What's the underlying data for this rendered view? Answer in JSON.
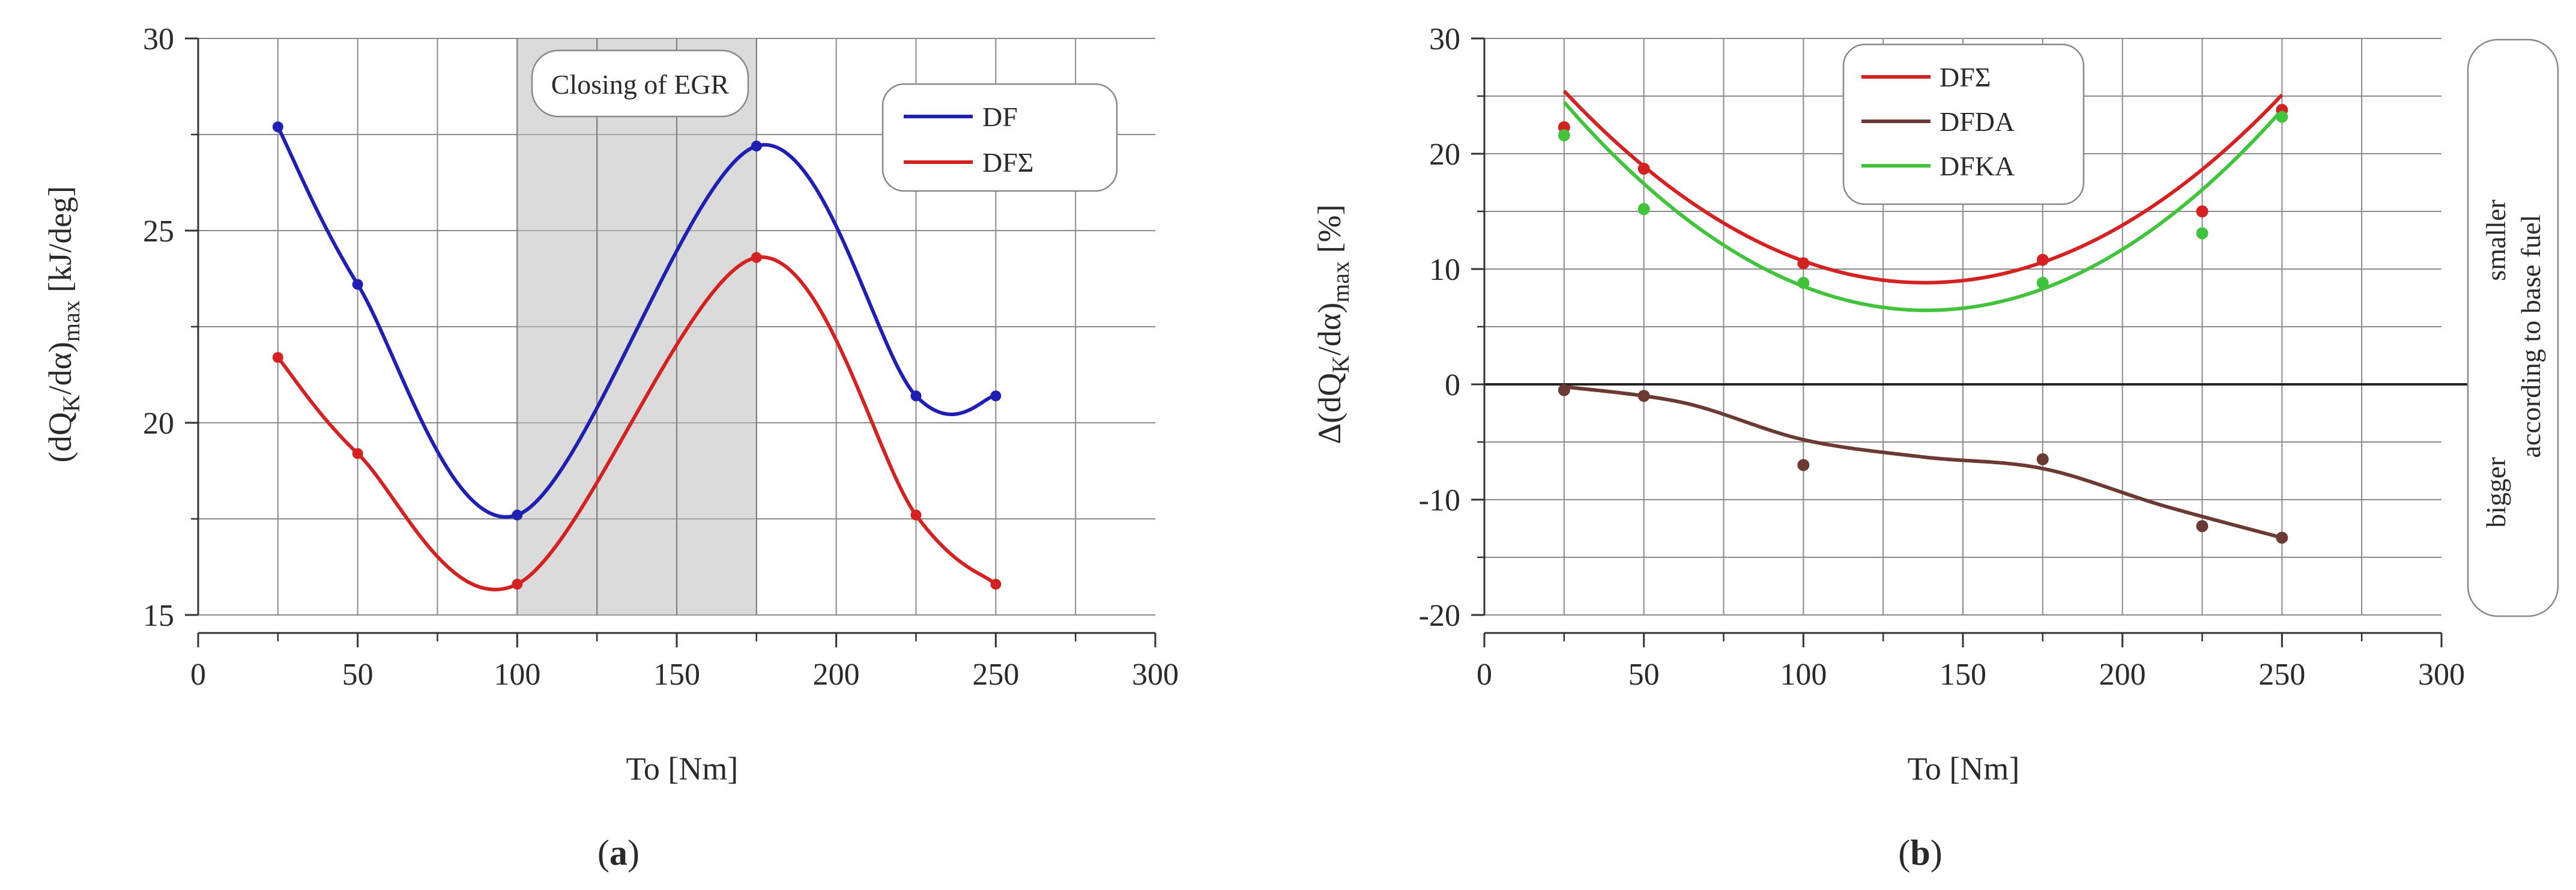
{
  "chart_data": [
    {
      "panel": "a",
      "panel_label": "a",
      "type": "line",
      "ylabel_main": "(dQ",
      "ylabel_sub1": "K",
      "ylabel_mid": "/dα)",
      "ylabel_sub2": "max",
      "ylabel_tail": " [kJ/deg]",
      "xlabel": "To [Nm]",
      "xlim": [
        0,
        300
      ],
      "ylim": [
        15,
        30
      ],
      "xticks": [
        0,
        50,
        100,
        150,
        200,
        250,
        300
      ],
      "yticks": [
        15,
        20,
        25,
        30
      ],
      "grid": true,
      "shaded_region": {
        "x": [
          100,
          175
        ],
        "label": "Closing of EGR"
      },
      "legend_position": "top-right",
      "series": [
        {
          "name": "DF",
          "color": "#1f1fb4",
          "x": [
            25,
            50,
            100,
            175,
            225,
            250
          ],
          "values": [
            27.7,
            23.6,
            17.6,
            27.2,
            20.7,
            20.7
          ]
        },
        {
          "name": "DFΣ",
          "color": "#d42121",
          "x": [
            25,
            50,
            100,
            175,
            225,
            250
          ],
          "values": [
            21.7,
            19.2,
            15.8,
            24.3,
            17.6,
            15.8
          ]
        }
      ]
    },
    {
      "panel": "b",
      "panel_label": "b",
      "type": "scatter",
      "ylabel_main": "Δ(dQ",
      "ylabel_sub1": "K",
      "ylabel_mid": "/dα)",
      "ylabel_sub2": "max",
      "ylabel_tail": " [%]",
      "xlabel": "To [Nm]",
      "xlim": [
        0,
        300
      ],
      "ylim": [
        -20,
        30
      ],
      "xticks": [
        0,
        50,
        100,
        150,
        200,
        250,
        300
      ],
      "yticks": [
        -20,
        -10,
        0,
        10,
        20,
        30
      ],
      "grid": true,
      "side_note": {
        "top": "smaller",
        "bottom": "bigger",
        "middle": "according to base fuel"
      },
      "legend_position": "top-center",
      "series": [
        {
          "name": "DFΣ",
          "color": "#d42121",
          "x": [
            25,
            50,
            100,
            175,
            225,
            250
          ],
          "values": [
            22.3,
            18.7,
            10.5,
            10.8,
            15.0,
            23.8
          ],
          "fit_x": [
            25,
            250
          ],
          "fit_coeffs": [
            33.6,
            -0.359,
            0.0013
          ]
        },
        {
          "name": "DFDA",
          "color": "#6b3a33",
          "x": [
            25,
            50,
            100,
            175,
            225,
            250
          ],
          "values": [
            -0.5,
            -1.0,
            -7.0,
            -6.5,
            -12.3,
            -13.3
          ],
          "fit_x": [
            25,
            250
          ],
          "fit_cubic": [
            -0.2,
            -1.6,
            -4.8,
            -6.3,
            -7.3,
            -10.5,
            -13.3
          ]
        },
        {
          "name": "DFKA",
          "color": "#41c43c",
          "x": [
            25,
            50,
            100,
            175,
            225,
            250
          ],
          "values": [
            21.6,
            15.2,
            8.8,
            8.8,
            13.1,
            23.2
          ],
          "fit_x": [
            25,
            250
          ],
          "fit_coeffs": [
            33.3,
            -0.388,
            0.0014
          ]
        }
      ]
    }
  ]
}
